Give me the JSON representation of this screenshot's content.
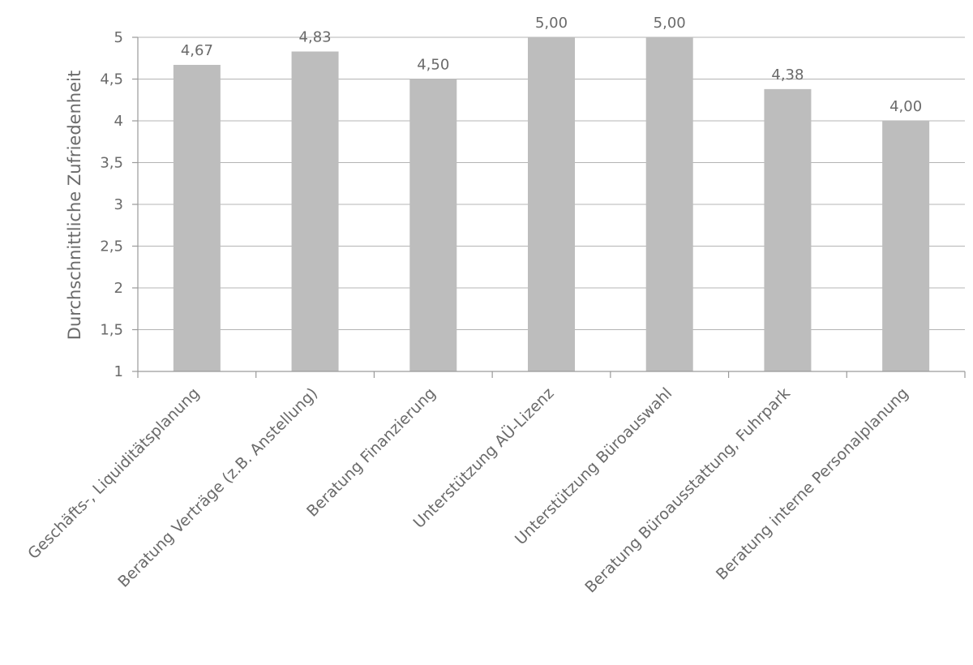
{
  "chart_data": {
    "type": "bar",
    "title": "",
    "xlabel": "",
    "ylabel": "Durchschnittliche Zufriedenheit",
    "ylim": [
      1,
      5
    ],
    "yticks": [
      "1",
      "1,5",
      "2",
      "2,5",
      "3",
      "3,5",
      "4",
      "4,5",
      "5"
    ],
    "ytick_values": [
      1,
      1.5,
      2,
      2.5,
      3,
      3.5,
      4,
      4.5,
      5
    ],
    "categories": [
      "Geschäfts-, Liquiditätsplanung",
      "Beratung Verträge (z.B. Anstellung)",
      "Beratung Finanzierung",
      "Unterstützung AÜ-Lizenz",
      "Unterstützung Büroauswahl",
      "Beratung Büroausstattung, Fuhrpark",
      "Beratung interne Personalplanung"
    ],
    "values": [
      4.67,
      4.83,
      4.5,
      5.0,
      5.0,
      4.38,
      4.0
    ],
    "data_labels": [
      "4,67",
      "4,83",
      "4,50",
      "5,00",
      "5,00",
      "4,38",
      "4,00"
    ],
    "grid": true,
    "bar_color": "#bdbdbd"
  }
}
